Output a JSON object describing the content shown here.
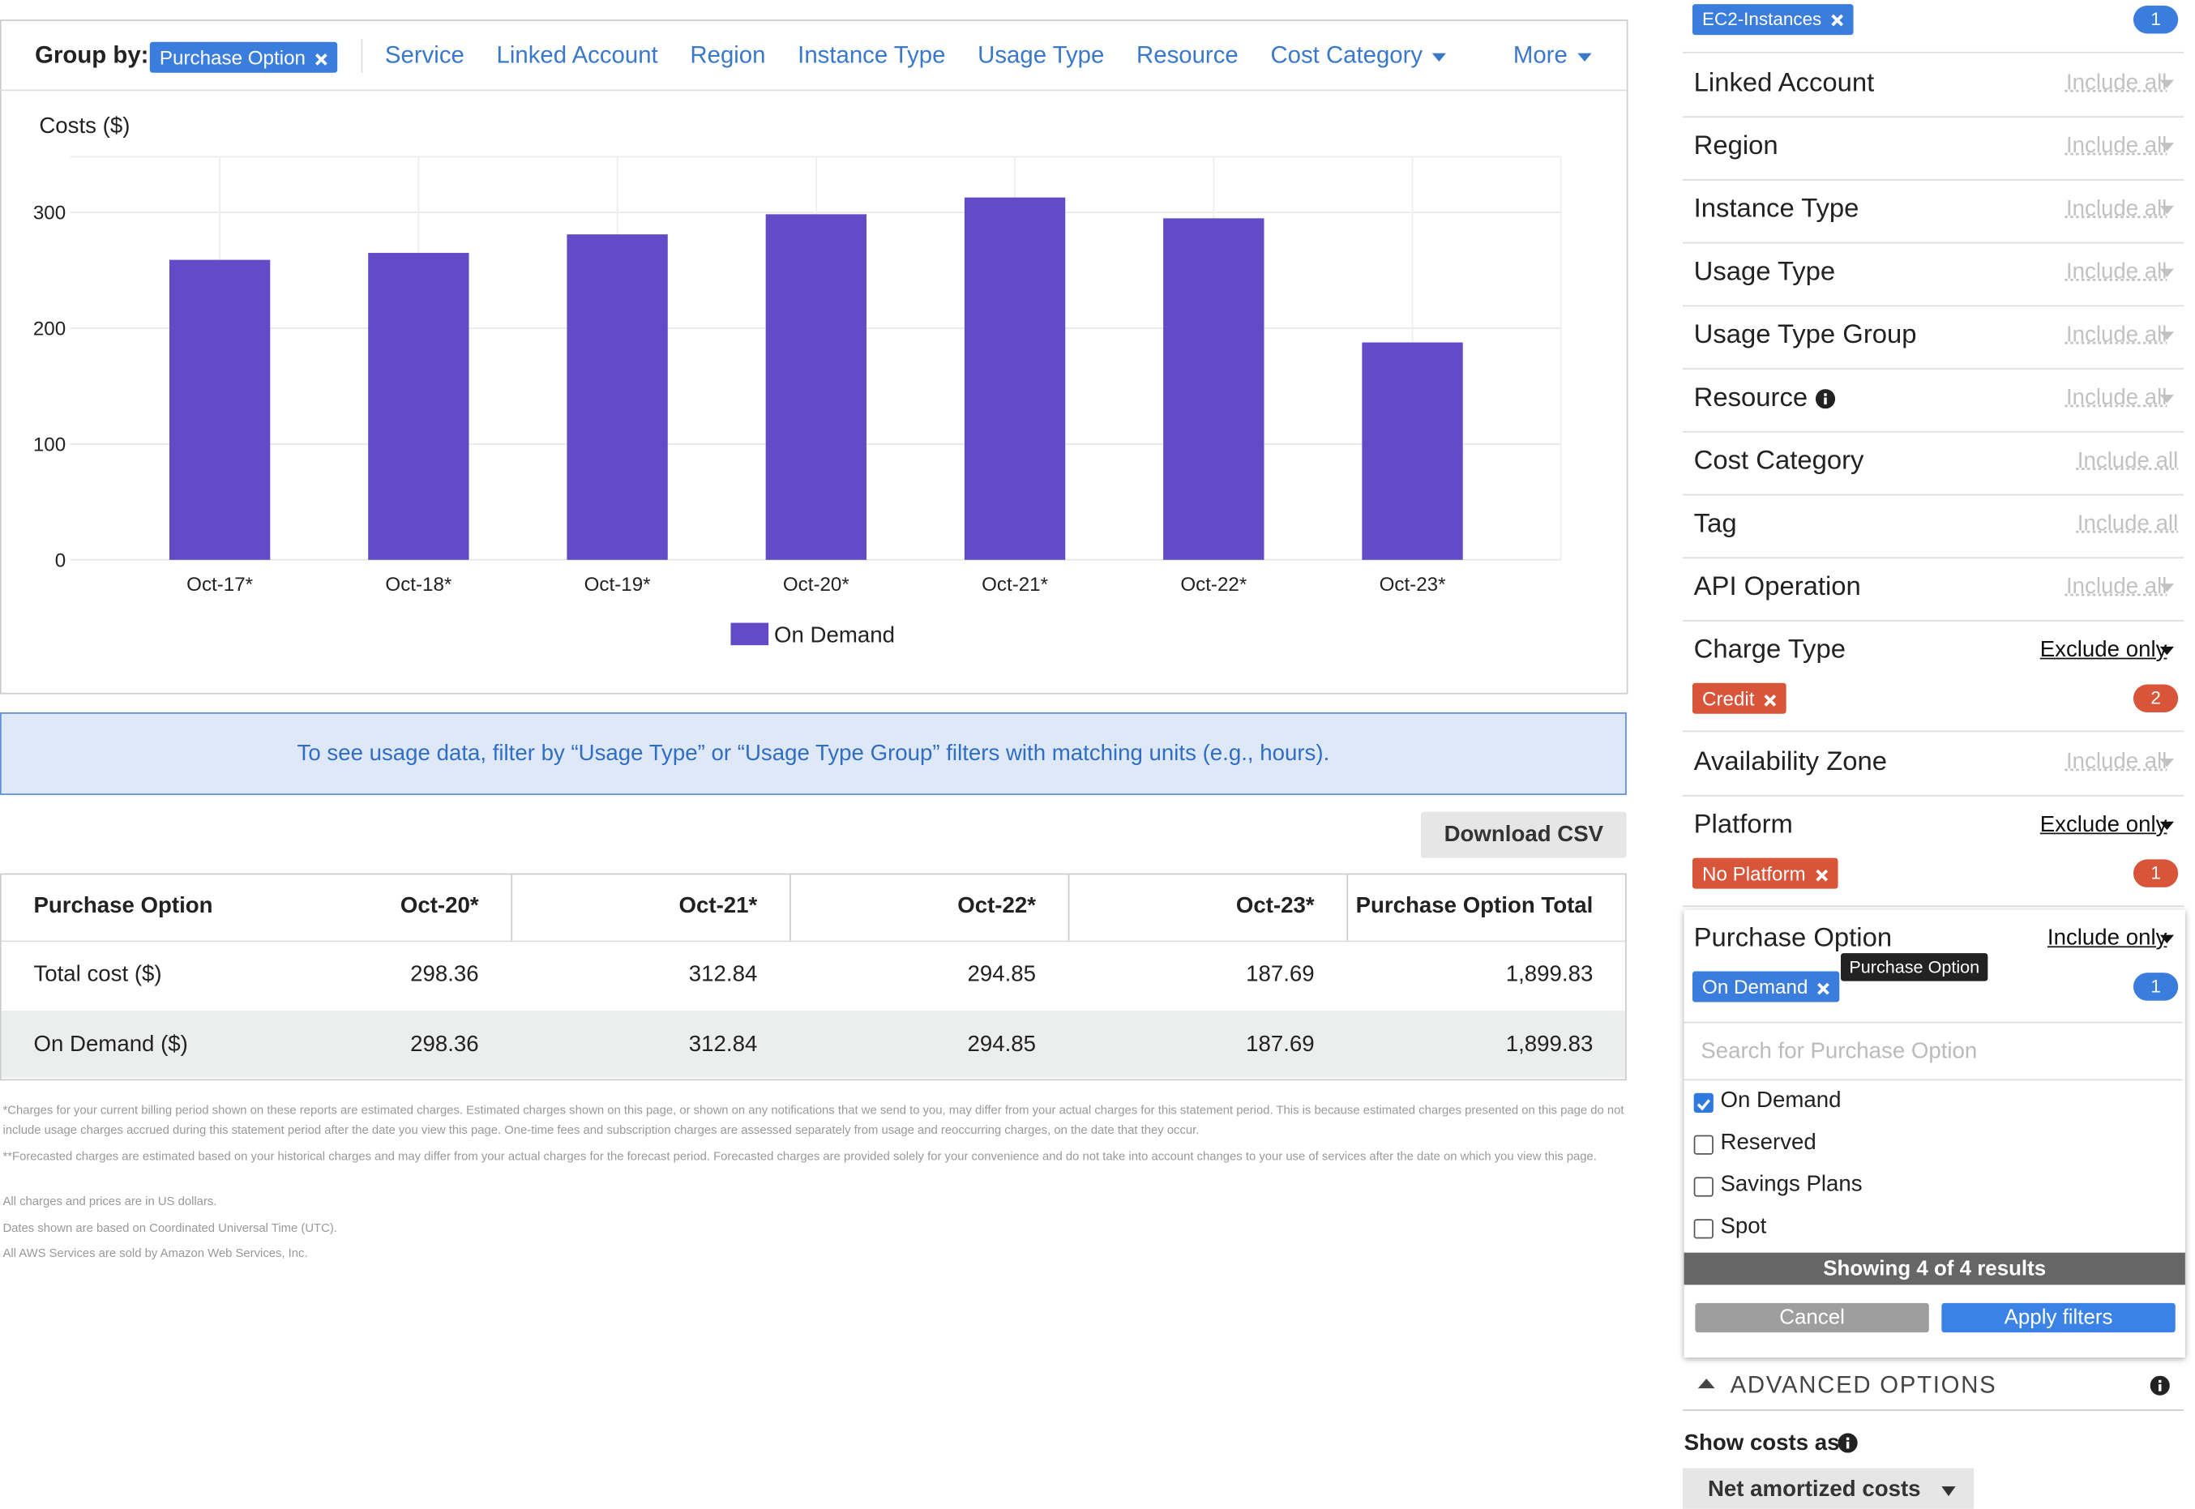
{
  "toolbar": {
    "group_by_label": "Group by:",
    "selected": "Purchase Option",
    "options": [
      "Service",
      "Linked Account",
      "Region",
      "Instance Type",
      "Usage Type",
      "Resource",
      "Cost Category"
    ],
    "more": "More"
  },
  "chart_data": {
    "type": "bar",
    "y_label": "Costs ($)",
    "categories": [
      "Oct-17*",
      "Oct-18*",
      "Oct-19*",
      "Oct-20*",
      "Oct-21*",
      "Oct-22*",
      "Oct-23*"
    ],
    "series": [
      {
        "name": "On Demand",
        "color": "#634ac6",
        "values": [
          259,
          265,
          281,
          298.36,
          312.84,
          294.85,
          187.69
        ]
      }
    ],
    "ylim": [
      0,
      348
    ],
    "yticks": [
      0,
      100,
      200,
      300
    ],
    "grid": true,
    "legend": "bottom"
  },
  "banner": "To see usage data, filter by “Usage Type” or “Usage Type Group” filters with matching units (e.g., hours).",
  "download": "Download CSV",
  "table": {
    "header": [
      "Purchase Option",
      "Oct-20*",
      "Oct-21*",
      "Oct-22*",
      "Oct-23*",
      "Purchase Option Total"
    ],
    "rows": [
      [
        "Total cost ($)",
        "298.36",
        "312.84",
        "294.85",
        "187.69",
        "1,899.83"
      ],
      [
        "On Demand ($)",
        "298.36",
        "312.84",
        "294.85",
        "187.69",
        "1,899.83"
      ]
    ]
  },
  "footnotes": [
    "*Charges for your current billing period shown on these reports are estimated charges. Estimated charges shown on this page, or shown on any notifications that we send to you, may differ from your actual charges for this statement period. This is because estimated charges presented on this page do not include usage charges accrued during this statement period after the date you view this page. One-time fees and subscription charges are assessed separately from usage and reoccurring charges, on the date that they occur.",
    "**Forecasted charges are estimated based on your historical charges and may differ from your actual charges for the forecast period. Forecasted charges are provided solely for your convenience and do not take into account changes to your use of services after the date on which you view this page.",
    "All charges and prices are in US dollars.",
    "Dates shown are based on Coordinated Universal Time (UTC).",
    "All AWS Services are sold by Amazon Web Services, Inc."
  ],
  "sidebar": {
    "top_chip": "EC2-Instances",
    "top_count": "1",
    "filters": [
      {
        "label": "Linked Account",
        "mode": "Include all"
      },
      {
        "label": "Region",
        "mode": "Include all"
      },
      {
        "label": "Instance Type",
        "mode": "Include all"
      },
      {
        "label": "Usage Type",
        "mode": "Include all"
      },
      {
        "label": "Usage Type Group",
        "mode": "Include all"
      },
      {
        "label": "Resource",
        "mode": "Include all"
      },
      {
        "label": "Cost Category",
        "mode": "Include all"
      },
      {
        "label": "Tag",
        "mode": "Include all"
      },
      {
        "label": "API Operation",
        "mode": "Include all"
      },
      {
        "label": "Charge Type",
        "mode": "Exclude only",
        "chip": "Credit",
        "count": "2"
      },
      {
        "label": "Availability Zone",
        "mode": "Include all"
      },
      {
        "label": "Platform",
        "mode": "Exclude only",
        "chip": "No Platform",
        "count": "1"
      }
    ],
    "purchase_panel": {
      "label": "Purchase Option",
      "mode": "Include only",
      "chip": "On Demand",
      "tooltip": "Purchase Option",
      "count": "1",
      "search_placeholder": "Search for Purchase Option",
      "options": [
        {
          "label": "On Demand",
          "checked": true
        },
        {
          "label": "Reserved",
          "checked": false
        },
        {
          "label": "Savings Plans",
          "checked": false
        },
        {
          "label": "Spot",
          "checked": false
        }
      ],
      "results": "Showing 4 of 4 results",
      "cancel": "Cancel",
      "apply": "Apply filters"
    },
    "advanced": "ADVANCED OPTIONS",
    "show_costs_label": "Show costs as",
    "show_costs_value": "Net amortized costs"
  }
}
